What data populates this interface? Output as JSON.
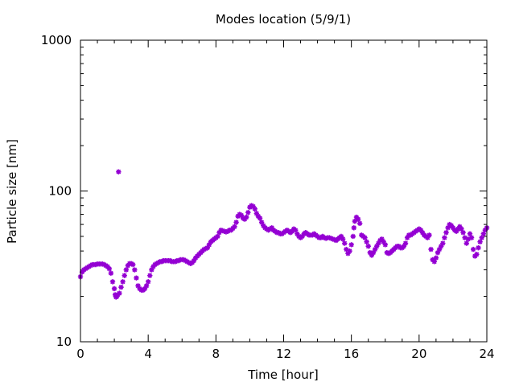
{
  "chart_data": {
    "type": "scatter",
    "title": "Modes location (5/9/1)",
    "xlabel": "Time [hour]",
    "ylabel": "Particle size [nm]",
    "xlim": [
      0,
      24
    ],
    "ylim": [
      10,
      1000
    ],
    "yscale": "log",
    "grid": false,
    "legend": "none",
    "xticks": [
      0,
      4,
      8,
      12,
      16,
      20,
      24
    ],
    "xtick_labels": [
      "0",
      "4",
      "8",
      "12",
      "16",
      "20",
      "24"
    ],
    "yticks": [
      10,
      100,
      1000
    ],
    "ytick_labels": [
      "10",
      "100",
      "1000"
    ],
    "marker": "star",
    "color": "#9400d3",
    "series": [
      {
        "points": [
          [
            0.0,
            27.0
          ],
          [
            0.1,
            29.0
          ],
          [
            0.2,
            30.0
          ],
          [
            0.3,
            30.5
          ],
          [
            0.4,
            31.0
          ],
          [
            0.5,
            31.5
          ],
          [
            0.6,
            32.0
          ],
          [
            0.7,
            32.5
          ],
          [
            0.8,
            32.5
          ],
          [
            0.9,
            32.5
          ],
          [
            1.0,
            32.8
          ],
          [
            1.1,
            32.8
          ],
          [
            1.2,
            32.8
          ],
          [
            1.3,
            32.8
          ],
          [
            1.4,
            32.5
          ],
          [
            1.5,
            32.0
          ],
          [
            1.6,
            31.5
          ],
          [
            1.7,
            30.5
          ],
          [
            1.8,
            28.5
          ],
          [
            1.9,
            25.0
          ],
          [
            2.0,
            22.5
          ],
          [
            2.05,
            20.5
          ],
          [
            2.1,
            19.8
          ],
          [
            2.15,
            20.0
          ],
          [
            2.2,
            20.5
          ],
          [
            2.25,
            134.0
          ],
          [
            2.3,
            21.0
          ],
          [
            2.4,
            23.0
          ],
          [
            2.5,
            25.0
          ],
          [
            2.6,
            27.5
          ],
          [
            2.7,
            30.0
          ],
          [
            2.8,
            32.0
          ],
          [
            2.9,
            33.0
          ],
          [
            3.0,
            33.0
          ],
          [
            3.1,
            32.5
          ],
          [
            3.2,
            30.0
          ],
          [
            3.3,
            26.5
          ],
          [
            3.4,
            23.5
          ],
          [
            3.5,
            22.5
          ],
          [
            3.6,
            22.0
          ],
          [
            3.7,
            22.0
          ],
          [
            3.8,
            22.5
          ],
          [
            3.9,
            23.5
          ],
          [
            4.0,
            25.0
          ],
          [
            4.1,
            27.5
          ],
          [
            4.2,
            30.0
          ],
          [
            4.3,
            31.5
          ],
          [
            4.4,
            32.5
          ],
          [
            4.5,
            33.0
          ],
          [
            4.6,
            33.5
          ],
          [
            4.7,
            34.0
          ],
          [
            4.8,
            34.0
          ],
          [
            4.9,
            34.5
          ],
          [
            5.0,
            34.5
          ],
          [
            5.1,
            34.5
          ],
          [
            5.2,
            34.5
          ],
          [
            5.3,
            34.5
          ],
          [
            5.4,
            34.0
          ],
          [
            5.5,
            34.0
          ],
          [
            5.6,
            34.0
          ],
          [
            5.7,
            34.5
          ],
          [
            5.8,
            34.5
          ],
          [
            5.9,
            35.0
          ],
          [
            6.0,
            35.0
          ],
          [
            6.1,
            35.0
          ],
          [
            6.2,
            34.5
          ],
          [
            6.3,
            34.0
          ],
          [
            6.4,
            33.5
          ],
          [
            6.5,
            33.0
          ],
          [
            6.6,
            33.5
          ],
          [
            6.7,
            34.5
          ],
          [
            6.8,
            36.0
          ],
          [
            6.9,
            37.0
          ],
          [
            7.0,
            38.0
          ],
          [
            7.1,
            39.0
          ],
          [
            7.2,
            40.0
          ],
          [
            7.3,
            41.0
          ],
          [
            7.4,
            41.5
          ],
          [
            7.5,
            42.0
          ],
          [
            7.6,
            44.0
          ],
          [
            7.7,
            46.0
          ],
          [
            7.8,
            47.0
          ],
          [
            7.9,
            48.0
          ],
          [
            8.0,
            49.0
          ],
          [
            8.1,
            50.0
          ],
          [
            8.2,
            53.0
          ],
          [
            8.3,
            55.0
          ],
          [
            8.4,
            54.5
          ],
          [
            8.5,
            54.0
          ],
          [
            8.6,
            53.5
          ],
          [
            8.7,
            54.0
          ],
          [
            8.8,
            55.0
          ],
          [
            8.9,
            55.0
          ],
          [
            9.0,
            56.5
          ],
          [
            9.1,
            58.0
          ],
          [
            9.2,
            62.0
          ],
          [
            9.3,
            68.0
          ],
          [
            9.4,
            70.0
          ],
          [
            9.5,
            69.0
          ],
          [
            9.6,
            66.0
          ],
          [
            9.7,
            65.0
          ],
          [
            9.8,
            67.0
          ],
          [
            9.9,
            72.0
          ],
          [
            10.0,
            78.0
          ],
          [
            10.1,
            80.0
          ],
          [
            10.2,
            79.0
          ],
          [
            10.3,
            76.0
          ],
          [
            10.4,
            71.0
          ],
          [
            10.5,
            68.0
          ],
          [
            10.6,
            66.0
          ],
          [
            10.7,
            62.0
          ],
          [
            10.8,
            59.0
          ],
          [
            10.9,
            57.0
          ],
          [
            11.0,
            56.0
          ],
          [
            11.1,
            55.0
          ],
          [
            11.2,
            56.0
          ],
          [
            11.3,
            57.0
          ],
          [
            11.4,
            55.0
          ],
          [
            11.5,
            54.0
          ],
          [
            11.6,
            53.0
          ],
          [
            11.7,
            53.0
          ],
          [
            11.8,
            52.0
          ],
          [
            11.9,
            52.0
          ],
          [
            12.0,
            53.0
          ],
          [
            12.1,
            54.0
          ],
          [
            12.2,
            55.0
          ],
          [
            12.3,
            54.0
          ],
          [
            12.4,
            53.0
          ],
          [
            12.5,
            54.0
          ],
          [
            12.6,
            56.0
          ],
          [
            12.7,
            55.0
          ],
          [
            12.8,
            52.0
          ],
          [
            12.9,
            50.0
          ],
          [
            13.0,
            49.0
          ],
          [
            13.1,
            50.0
          ],
          [
            13.2,
            52.0
          ],
          [
            13.3,
            53.0
          ],
          [
            13.4,
            52.0
          ],
          [
            13.5,
            51.0
          ],
          [
            13.6,
            51.0
          ],
          [
            13.7,
            51.0
          ],
          [
            13.8,
            52.0
          ],
          [
            13.9,
            51.0
          ],
          [
            14.0,
            50.0
          ],
          [
            14.1,
            49.0
          ],
          [
            14.2,
            49.0
          ],
          [
            14.3,
            50.0
          ],
          [
            14.4,
            49.0
          ],
          [
            14.5,
            48.5
          ],
          [
            14.6,
            49.0
          ],
          [
            14.7,
            49.0
          ],
          [
            14.8,
            48.5
          ],
          [
            14.9,
            48.0
          ],
          [
            15.0,
            47.5
          ],
          [
            15.1,
            47.0
          ],
          [
            15.2,
            48.0
          ],
          [
            15.3,
            49.0
          ],
          [
            15.4,
            50.0
          ],
          [
            15.5,
            48.0
          ],
          [
            15.6,
            45.0
          ],
          [
            15.7,
            41.0
          ],
          [
            15.8,
            38.5
          ],
          [
            15.9,
            40.0
          ],
          [
            16.0,
            44.0
          ],
          [
            16.1,
            50.0
          ],
          [
            16.15,
            57.0
          ],
          [
            16.2,
            63.0
          ],
          [
            16.3,
            67.0
          ],
          [
            16.4,
            65.0
          ],
          [
            16.5,
            61.0
          ],
          [
            16.6,
            51.0
          ],
          [
            16.7,
            50.0
          ],
          [
            16.8,
            49.0
          ],
          [
            16.9,
            46.0
          ],
          [
            17.0,
            43.0
          ],
          [
            17.1,
            39.0
          ],
          [
            17.2,
            37.5
          ],
          [
            17.3,
            39.0
          ],
          [
            17.4,
            41.0
          ],
          [
            17.5,
            43.0
          ],
          [
            17.6,
            45.0
          ],
          [
            17.7,
            47.0
          ],
          [
            17.8,
            48.0
          ],
          [
            17.9,
            46.0
          ],
          [
            18.0,
            44.0
          ],
          [
            18.1,
            39.0
          ],
          [
            18.2,
            38.5
          ],
          [
            18.3,
            39.0
          ],
          [
            18.4,
            40.0
          ],
          [
            18.5,
            41.0
          ],
          [
            18.6,
            42.0
          ],
          [
            18.7,
            43.0
          ],
          [
            18.8,
            43.0
          ],
          [
            18.9,
            42.0
          ],
          [
            19.0,
            42.0
          ],
          [
            19.1,
            43.0
          ],
          [
            19.2,
            45.0
          ],
          [
            19.3,
            49.0
          ],
          [
            19.4,
            51.0
          ],
          [
            19.5,
            51.0
          ],
          [
            19.6,
            52.0
          ],
          [
            19.7,
            53.0
          ],
          [
            19.8,
            54.0
          ],
          [
            19.9,
            55.0
          ],
          [
            20.0,
            56.0
          ],
          [
            20.1,
            55.0
          ],
          [
            20.2,
            53.0
          ],
          [
            20.3,
            51.0
          ],
          [
            20.4,
            50.0
          ],
          [
            20.5,
            49.0
          ],
          [
            20.6,
            51.0
          ],
          [
            20.7,
            41.0
          ],
          [
            20.8,
            35.0
          ],
          [
            20.9,
            34.0
          ],
          [
            21.0,
            36.0
          ],
          [
            21.1,
            39.0
          ],
          [
            21.2,
            41.0
          ],
          [
            21.3,
            43.0
          ],
          [
            21.4,
            45.0
          ],
          [
            21.5,
            49.0
          ],
          [
            21.6,
            53.0
          ],
          [
            21.7,
            57.0
          ],
          [
            21.8,
            60.0
          ],
          [
            21.9,
            59.0
          ],
          [
            22.0,
            57.0
          ],
          [
            22.1,
            55.0
          ],
          [
            22.2,
            54.0
          ],
          [
            22.3,
            56.0
          ],
          [
            22.4,
            58.0
          ],
          [
            22.5,
            56.0
          ],
          [
            22.6,
            53.0
          ],
          [
            22.7,
            49.0
          ],
          [
            22.8,
            45.0
          ],
          [
            22.9,
            48.0
          ],
          [
            23.0,
            52.0
          ],
          [
            23.1,
            49.0
          ],
          [
            23.2,
            41.0
          ],
          [
            23.3,
            37.0
          ],
          [
            23.4,
            38.0
          ],
          [
            23.5,
            42.0
          ],
          [
            23.6,
            46.0
          ],
          [
            23.7,
            49.0
          ],
          [
            23.8,
            52.0
          ],
          [
            23.9,
            55.0
          ],
          [
            24.0,
            57.0
          ]
        ]
      }
    ]
  }
}
